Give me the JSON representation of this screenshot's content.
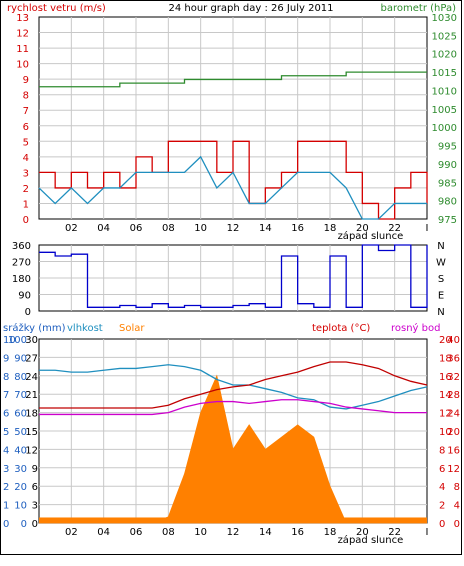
{
  "title": "24 hour graph day : 26 July 2011",
  "colors": {
    "wind": "#d40000",
    "gust": "#d40000",
    "wind_avg": "#1f8fbf",
    "pressure": "#2e8b2e",
    "direction": "#0000cc",
    "humidity": "#1f8fbf",
    "solar": "#ff8000",
    "temperature": "#c00000",
    "dewpoint": "#cc00cc",
    "rain": "#1f5fbf",
    "grid": "#c8c8c8",
    "axis_left_top": "#d40000",
    "axis_right_top": "#2e8b2e",
    "axis_rain": "#1f5fbf",
    "axis_temp": "#d40000"
  },
  "x_ticks": [
    "02",
    "04",
    "06",
    "08",
    "10",
    "12",
    "14",
    "16",
    "18",
    "20",
    "22"
  ],
  "sunset_label": "západ slunce",
  "sunset_hour": 20.5,
  "chart_data": [
    {
      "type": "line",
      "title": "24 hour graph day : 26 July 2011",
      "ylabel_left": "rychlost vetru (m/s)",
      "ylabel_right": "barometr (hPa)",
      "ylim_left": [
        0,
        13
      ],
      "ylim_right": [
        975,
        1030
      ],
      "yticks_left": [
        "0",
        "1",
        "2",
        "3",
        "4",
        "5",
        "6",
        "7",
        "8",
        "9",
        "10",
        "11",
        "12",
        "13"
      ],
      "yticks_right": [
        "975",
        "980",
        "985",
        "990",
        "995",
        "1000",
        "1005",
        "1010",
        "1015",
        "1020",
        "1025",
        "1030"
      ],
      "x_hours": [
        0,
        1,
        2,
        3,
        4,
        5,
        6,
        7,
        8,
        9,
        10,
        11,
        12,
        13,
        14,
        15,
        16,
        17,
        18,
        19,
        20,
        21,
        22,
        23,
        24
      ],
      "series": [
        {
          "name": "gust",
          "axis": "left",
          "values": [
            3,
            2,
            3,
            2,
            3,
            2,
            4,
            3,
            5,
            5,
            5,
            3,
            5,
            1,
            2,
            3,
            5,
            5,
            5,
            3,
            1,
            0,
            2,
            3,
            1
          ]
        },
        {
          "name": "average",
          "axis": "left",
          "values": [
            2,
            1,
            2,
            1,
            2,
            2,
            3,
            3,
            3,
            3,
            4,
            2,
            3,
            1,
            1,
            2,
            3,
            3,
            3,
            2,
            0,
            0,
            1,
            1,
            1
          ]
        },
        {
          "name": "pressure",
          "axis": "right",
          "values": [
            1011,
            1011,
            1011,
            1011,
            1011,
            1012,
            1012,
            1012,
            1012,
            1013,
            1013,
            1013,
            1013,
            1013,
            1013,
            1014,
            1014,
            1014,
            1014,
            1015,
            1015,
            1015,
            1015,
            1015,
            1015
          ]
        }
      ],
      "grid": true
    },
    {
      "type": "scatter",
      "ylabel_left": "",
      "ylim": [
        0,
        360
      ],
      "yticks_left": [
        "0",
        "90",
        "180",
        "270",
        "360"
      ],
      "yticks_right": [
        "N",
        "E",
        "S",
        "W",
        "N"
      ],
      "x_hours": [
        0,
        1,
        2,
        3,
        4,
        5,
        6,
        7,
        8,
        9,
        10,
        11,
        12,
        13,
        14,
        15,
        16,
        17,
        18,
        19,
        20,
        21,
        22,
        23,
        24
      ],
      "series": [
        {
          "name": "direction",
          "values": [
            320,
            300,
            310,
            20,
            20,
            30,
            20,
            40,
            20,
            30,
            20,
            20,
            30,
            40,
            20,
            300,
            40,
            20,
            300,
            20,
            360,
            330,
            360,
            20,
            360
          ]
        }
      ],
      "grid": true
    },
    {
      "type": "area",
      "legend": [
        "srážky (mm)",
        "vlhkost",
        "Solar",
        "teplota (°C)",
        "rosný bod"
      ],
      "yticks_rain": [
        "0",
        "1",
        "2",
        "3",
        "4",
        "5",
        "6",
        "7",
        "8",
        "9",
        "10"
      ],
      "yticks_humidity": [
        "0",
        "10",
        "20",
        "30",
        "40",
        "50",
        "60",
        "70",
        "80",
        "90",
        "100"
      ],
      "yticks_solar": [
        "0",
        "3",
        "6",
        "9",
        "12",
        "15",
        "18",
        "21",
        "24",
        "27",
        "30"
      ],
      "yticks_temp_a": [
        "0",
        "4",
        "8",
        "12",
        "16",
        "20",
        "24",
        "28",
        "32",
        "36",
        "40"
      ],
      "yticks_temp_b": [
        "0",
        "2",
        "4",
        "6",
        "8",
        "10",
        "12",
        "14",
        "16",
        "18",
        "20"
      ],
      "x_hours": [
        0,
        1,
        2,
        3,
        4,
        5,
        6,
        7,
        8,
        9,
        10,
        11,
        12,
        13,
        14,
        15,
        16,
        17,
        18,
        19,
        20,
        21,
        22,
        23,
        24
      ],
      "series": [
        {
          "name": "vlhkost",
          "values": [
            83,
            83,
            82,
            82,
            83,
            84,
            84,
            85,
            86,
            85,
            83,
            78,
            75,
            75,
            73,
            71,
            68,
            67,
            63,
            62,
            64,
            66,
            69,
            72,
            74
          ]
        },
        {
          "name": "Solar",
          "values": [
            0,
            0,
            0,
            0,
            0,
            0,
            0,
            0,
            1,
            8,
            18,
            24,
            12,
            16,
            12,
            14,
            16,
            14,
            6,
            0,
            0,
            0,
            0,
            0,
            0
          ]
        },
        {
          "name": "teplota (°C)",
          "values": [
            12.5,
            12.5,
            12.5,
            12.5,
            12.5,
            12.5,
            12.5,
            12.5,
            12.8,
            13.5,
            14.0,
            14.5,
            14.8,
            15.0,
            15.6,
            16.0,
            16.4,
            17.0,
            17.5,
            17.5,
            17.2,
            16.8,
            16.0,
            15.4,
            15.0
          ]
        },
        {
          "name": "rosný bod",
          "values": [
            11.8,
            11.8,
            11.8,
            11.8,
            11.8,
            11.8,
            11.8,
            11.8,
            12.0,
            12.6,
            13.0,
            13.2,
            13.2,
            13.0,
            13.2,
            13.4,
            13.4,
            13.2,
            13.0,
            12.6,
            12.4,
            12.2,
            12.0,
            12.0,
            12.0
          ]
        },
        {
          "name": "srážky (mm)",
          "values": [
            0.3,
            0.3,
            0.3,
            0.3,
            0.3,
            0.3,
            0.3,
            0.3,
            0.3,
            0.3,
            0.3,
            0.3,
            0.3,
            0.3,
            0.3,
            0.3,
            0.3,
            0.3,
            0.3,
            0.3,
            0.3,
            0.3,
            0.3,
            0.3,
            0.3
          ]
        }
      ],
      "grid": true
    }
  ]
}
